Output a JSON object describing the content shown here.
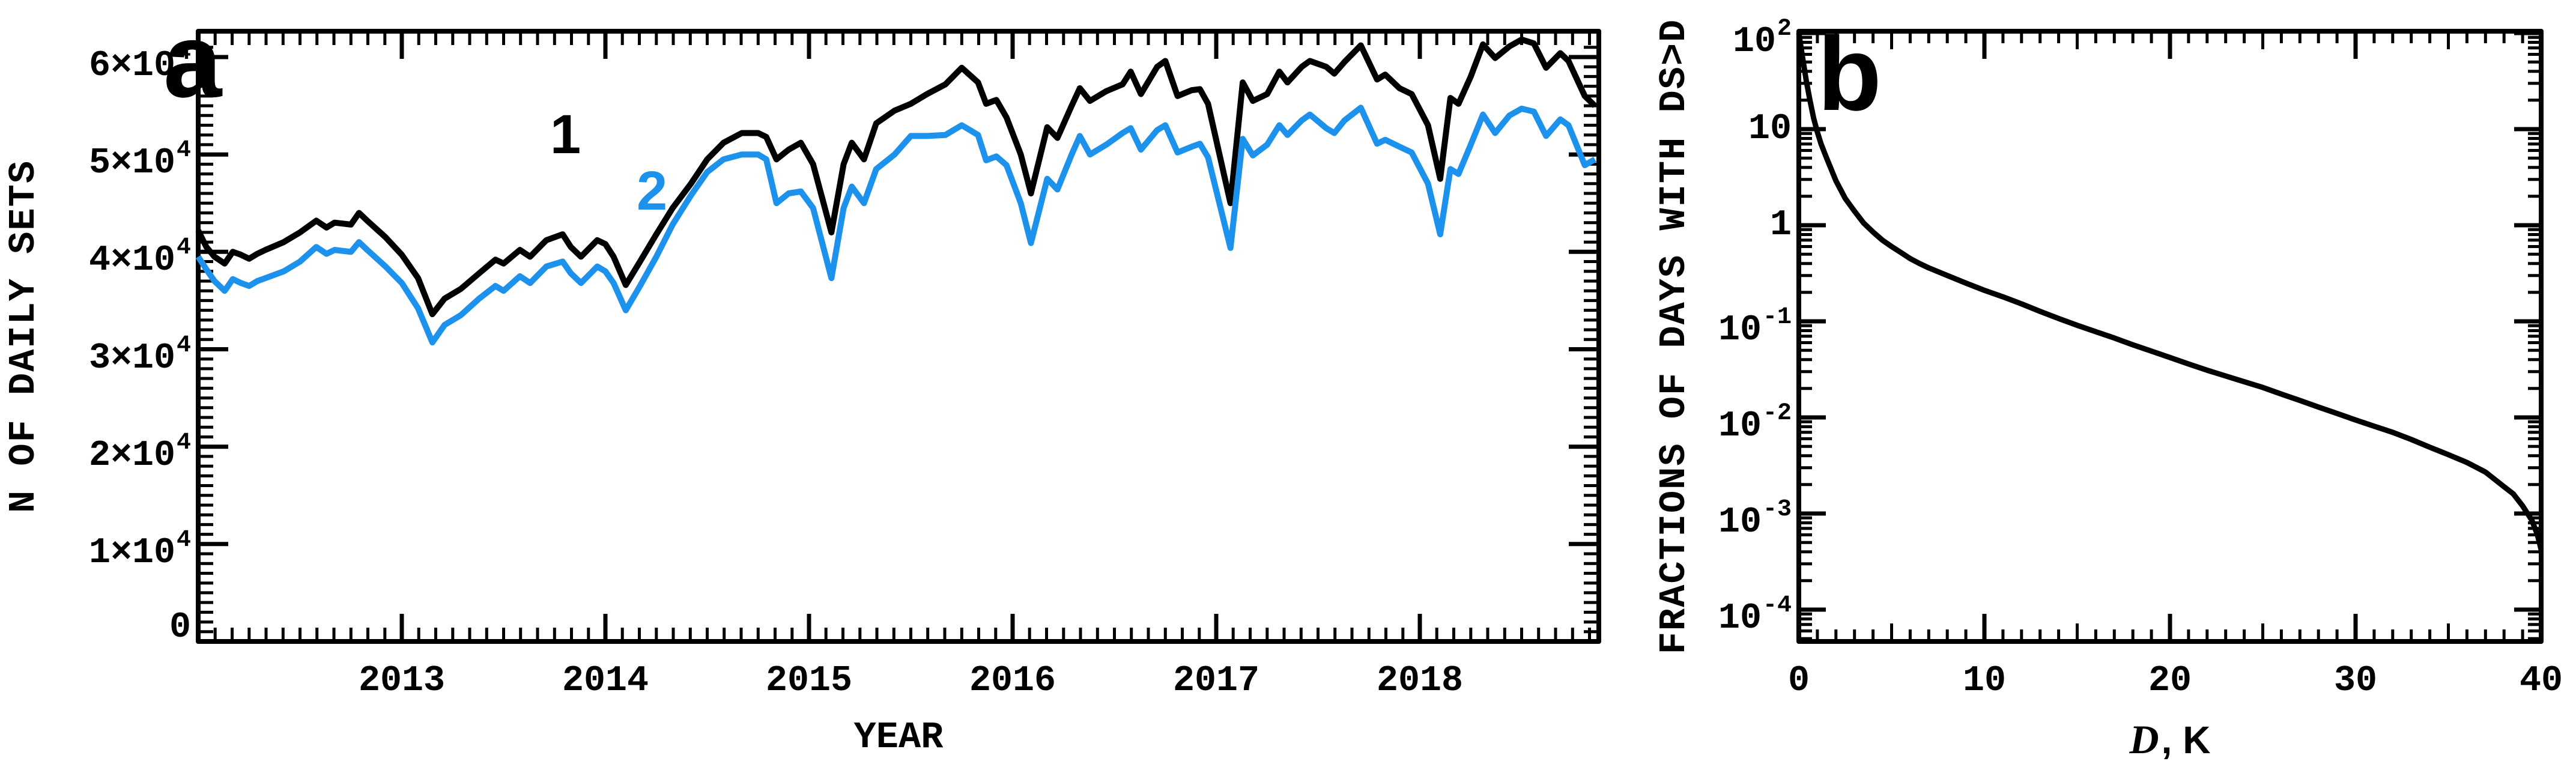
{
  "figure": {
    "background": "#ffffff",
    "black": "#000000",
    "blue": "#1c92ec"
  },
  "panel_a": {
    "panel_label": "a",
    "xlabel": "YEAR",
    "ylabel": "N OF DAILY SETS",
    "series1_label": "1",
    "series2_label": "2",
    "xtick_labels": [
      {
        "label": "2013",
        "value": 2013
      },
      {
        "label": "2014",
        "value": 2014
      },
      {
        "label": "2015",
        "value": 2015
      },
      {
        "label": "2016",
        "value": 2016
      },
      {
        "label": "2017",
        "value": 2017
      },
      {
        "label": "2018",
        "value": 2018
      }
    ],
    "ytick_labels": [
      {
        "text": "0",
        "sup": "",
        "value": 0
      },
      {
        "text": "1×10",
        "sup": "4",
        "value": 10000
      },
      {
        "text": "2×10",
        "sup": "4",
        "value": 20000
      },
      {
        "text": "3×10",
        "sup": "4",
        "value": 30000
      },
      {
        "text": "4×10",
        "sup": "4",
        "value": 40000
      },
      {
        "text": "5×10",
        "sup": "4",
        "value": 50000
      },
      {
        "text": "6×10",
        "sup": "4",
        "value": 60000
      }
    ]
  },
  "panel_b": {
    "panel_label": "b",
    "xlabel_d": "D",
    "xlabel_rest": ", K",
    "ylabel": "FRACTIONS OF DAYS WITH DS>D",
    "xtick_labels": [
      {
        "label": "0",
        "value": 0
      },
      {
        "label": "10",
        "value": 10
      },
      {
        "label": "20",
        "value": 20
      },
      {
        "label": "30",
        "value": 30
      },
      {
        "label": "40",
        "value": 40
      }
    ],
    "ytick_labels": [
      {
        "text": "10",
        "sup": "2",
        "log": 2
      },
      {
        "text": "10",
        "sup": "",
        "log": 1
      },
      {
        "text": "1",
        "sup": "",
        "log": 0
      },
      {
        "text": "10",
        "sup": "-1",
        "log": -1
      },
      {
        "text": "10",
        "sup": "-2",
        "log": -2
      },
      {
        "text": "10",
        "sup": "-3",
        "log": -3
      },
      {
        "text": "10",
        "sup": "-4",
        "log": -4
      }
    ]
  },
  "chart_data": [
    {
      "type": "line",
      "panel": "a",
      "title": "",
      "xlabel": "YEAR",
      "ylabel": "N OF DAILY SETS",
      "xlim": [
        2012.0,
        2018.88
      ],
      "ylim": [
        0,
        62000
      ],
      "grid": false,
      "legend": "inline labels 1 (black) and 2 (blue)",
      "x": [
        2012.0,
        2012.04,
        2012.08,
        2012.13,
        2012.17,
        2012.21,
        2012.25,
        2012.29,
        2012.33,
        2012.42,
        2012.5,
        2012.58,
        2012.63,
        2012.67,
        2012.75,
        2012.79,
        2012.83,
        2012.92,
        2013.0,
        2013.08,
        2013.15,
        2013.21,
        2013.29,
        2013.38,
        2013.46,
        2013.5,
        2013.58,
        2013.63,
        2013.71,
        2013.79,
        2013.83,
        2013.88,
        2013.96,
        2014.0,
        2014.04,
        2014.1,
        2014.17,
        2014.25,
        2014.33,
        2014.42,
        2014.5,
        2014.58,
        2014.67,
        2014.75,
        2014.79,
        2014.84,
        2014.9,
        2014.96,
        2015.02,
        2015.11,
        2015.17,
        2015.21,
        2015.27,
        2015.33,
        2015.42,
        2015.5,
        2015.58,
        2015.67,
        2015.75,
        2015.83,
        2015.87,
        2015.92,
        2015.97,
        2016.04,
        2016.09,
        2016.17,
        2016.22,
        2016.29,
        2016.33,
        2016.38,
        2016.46,
        2016.54,
        2016.58,
        2016.63,
        2016.71,
        2016.75,
        2016.81,
        2016.88,
        2016.92,
        2016.96,
        2017.07,
        2017.13,
        2017.18,
        2017.25,
        2017.31,
        2017.35,
        2017.42,
        2017.46,
        2017.54,
        2017.58,
        2017.63,
        2017.71,
        2017.79,
        2017.83,
        2017.9,
        2017.96,
        2018.04,
        2018.1,
        2018.15,
        2018.19,
        2018.25,
        2018.31,
        2018.37,
        2018.44,
        2018.5,
        2018.56,
        2018.62,
        2018.69,
        2018.73,
        2018.81,
        2018.86
      ],
      "series": [
        {
          "name": "1",
          "color": "#000000",
          "y": [
            42200,
            40500,
            39500,
            38800,
            40000,
            39700,
            39300,
            39800,
            40200,
            41000,
            42000,
            43200,
            42500,
            43000,
            42800,
            44000,
            43200,
            41500,
            39700,
            37300,
            33600,
            35200,
            36200,
            37800,
            39200,
            38800,
            40200,
            39500,
            41200,
            41800,
            40500,
            39500,
            41200,
            40800,
            39500,
            36600,
            39000,
            41800,
            44500,
            47000,
            49500,
            51200,
            52200,
            52200,
            51800,
            49500,
            50500,
            51200,
            49000,
            42000,
            49000,
            51200,
            49500,
            53200,
            54500,
            55200,
            56200,
            57200,
            58900,
            57400,
            55200,
            55600,
            53800,
            50000,
            46000,
            52800,
            51700,
            55000,
            56800,
            55500,
            56500,
            57200,
            58500,
            56200,
            59000,
            59600,
            56000,
            56600,
            56700,
            55200,
            45000,
            57400,
            55500,
            56200,
            58500,
            57400,
            59000,
            59600,
            59000,
            58300,
            59500,
            61200,
            57700,
            58200,
            56800,
            56200,
            53000,
            47500,
            55800,
            55200,
            58000,
            61300,
            59900,
            61100,
            61800,
            61400,
            58900,
            60400,
            59600,
            56000,
            55000
          ]
        },
        {
          "name": "2",
          "color": "#1c92ec",
          "y": [
            39500,
            38200,
            37000,
            36000,
            37200,
            36800,
            36500,
            37000,
            37300,
            38000,
            39000,
            40500,
            39800,
            40200,
            40000,
            41000,
            40200,
            38500,
            36800,
            34200,
            30700,
            32500,
            33500,
            35200,
            36500,
            36000,
            37500,
            36800,
            38500,
            39000,
            37800,
            36800,
            38500,
            38000,
            36800,
            34000,
            36500,
            39500,
            42800,
            45800,
            48200,
            49500,
            50000,
            50000,
            49500,
            45000,
            46000,
            46200,
            44500,
            37300,
            44500,
            46700,
            45000,
            48500,
            50000,
            51900,
            51900,
            52000,
            53000,
            52000,
            49400,
            49800,
            48900,
            45000,
            40900,
            47500,
            46400,
            50000,
            51900,
            50000,
            51000,
            52200,
            52700,
            50500,
            52500,
            53000,
            50200,
            50800,
            51100,
            49700,
            40400,
            51600,
            49900,
            51000,
            53000,
            52000,
            53500,
            54100,
            52700,
            52200,
            53500,
            54800,
            51100,
            51500,
            50800,
            50200,
            47000,
            41800,
            48500,
            48000,
            51000,
            54100,
            52200,
            54000,
            54700,
            54400,
            51900,
            53600,
            53000,
            48900,
            49500
          ]
        }
      ]
    },
    {
      "type": "line",
      "panel": "b",
      "title": "",
      "xlabel": "D, K",
      "ylabel": "FRACTIONS OF DAYS WITH DS>D",
      "xlim": [
        0,
        40
      ],
      "ylog": false,
      "yscale": "log",
      "ylim": [
        4.68e-05,
        100
      ],
      "grid": false,
      "series": [
        {
          "name": "fraction of days with DS>D",
          "color": "#000000",
          "x": [
            0,
            0.2,
            0.4,
            0.6,
            0.8,
            1.0,
            1.2,
            1.5,
            2.0,
            2.5,
            3.0,
            3.5,
            4.0,
            4.5,
            5.0,
            5.5,
            6.0,
            6.5,
            7.0,
            8.0,
            9.0,
            10,
            11,
            12,
            13,
            14,
            15,
            16,
            17,
            18,
            19,
            20,
            21,
            22,
            23,
            24,
            25,
            26,
            27,
            28,
            29,
            30,
            31,
            32,
            33,
            34,
            35,
            36,
            37,
            38,
            38.5,
            39,
            39.5,
            39.8,
            40
          ],
          "y": [
            100,
            56,
            32,
            20,
            13,
            9.3,
            7.0,
            5.0,
            2.9,
            1.9,
            1.4,
            1.05,
            0.85,
            0.7,
            0.6,
            0.52,
            0.45,
            0.4,
            0.36,
            0.3,
            0.25,
            0.21,
            0.18,
            0.152,
            0.127,
            0.107,
            0.091,
            0.078,
            0.067,
            0.057,
            0.049,
            0.042,
            0.036,
            0.031,
            0.027,
            0.0235,
            0.0205,
            0.0175,
            0.015,
            0.0128,
            0.011,
            0.0094,
            0.0081,
            0.007,
            0.0059,
            0.0049,
            0.0041,
            0.0034,
            0.0027,
            0.0019,
            0.0016,
            0.0012,
            0.00085,
            0.0006,
            0.00042
          ]
        }
      ]
    }
  ]
}
